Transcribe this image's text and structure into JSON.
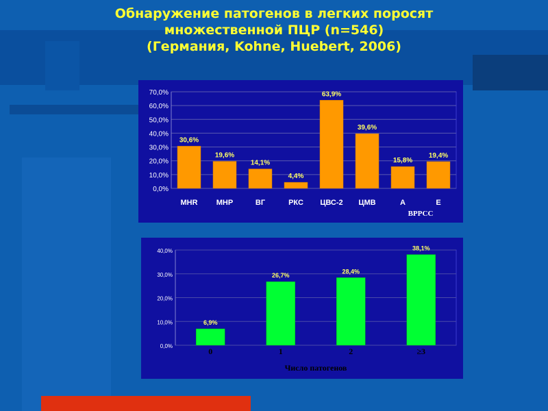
{
  "title_lines": [
    "Обнаружение патогенов в легких поросят",
    "множественной ПЦР (n=546)",
    "(Германия, Kohne, Huebert, 2006)"
  ],
  "colors": {
    "background": "#0e5fb0",
    "title": "#ffff33",
    "chart1_bar": "#ff9900",
    "chart2_bar": "#00ff33",
    "plot_area": "#1010a0",
    "decor_red": "#e03010"
  },
  "chart_data": [
    {
      "type": "bar",
      "categories": [
        "MHR",
        "MHP",
        "ВГ",
        "РКС",
        "ЦВС-2",
        "ЦМВ",
        "A",
        "E"
      ],
      "values": [
        30.6,
        19.6,
        14.1,
        4.4,
        63.9,
        39.6,
        15.8,
        19.4
      ],
      "value_labels": [
        "30,6%",
        "19,6%",
        "14,1%",
        "4,4%",
        "63,9%",
        "39,6%",
        "15,8%",
        "19,4%"
      ],
      "y_ticks": [
        "0,0%",
        "10,0%",
        "20,0%",
        "30,0%",
        "40,0%",
        "50,0%",
        "60,0%",
        "70,0%"
      ],
      "ylim": [
        0,
        70
      ],
      "xlabel": "ВРРСС",
      "ylabel": "",
      "title": "",
      "grid": true
    },
    {
      "type": "bar",
      "categories": [
        "0",
        "1",
        "2",
        "≥3"
      ],
      "values": [
        6.9,
        26.7,
        28.4,
        38.1
      ],
      "value_labels": [
        "6,9%",
        "26,7%",
        "28,4%",
        "38,1%"
      ],
      "y_ticks": [
        "0,0%",
        "10,0%",
        "20,0%",
        "30,0%",
        "40,0%"
      ],
      "ylim": [
        0,
        40
      ],
      "xlabel": "Число патогенов",
      "ylabel": "",
      "title": "",
      "grid": true
    }
  ]
}
